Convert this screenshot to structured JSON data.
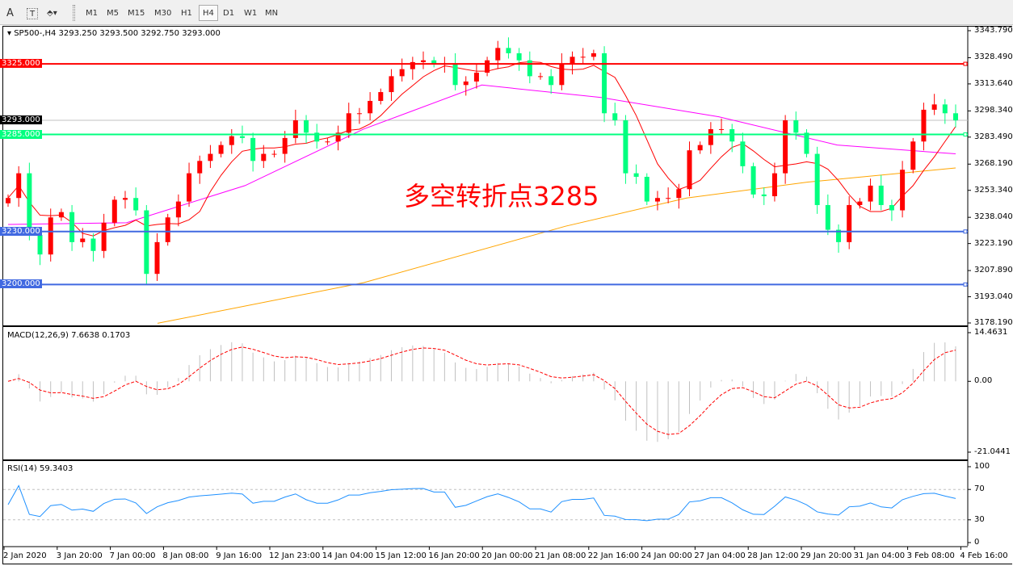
{
  "toolbar": {
    "tools": [
      {
        "name": "text",
        "glyph": "A"
      },
      {
        "name": "text-label",
        "glyph": "T"
      },
      {
        "name": "arrows",
        "glyph": "⬘▾"
      }
    ],
    "timeframes": [
      "M1",
      "M5",
      "M15",
      "M30",
      "H1",
      "H4",
      "D1",
      "W1",
      "MN"
    ],
    "active": "H4"
  },
  "main": {
    "title": "SP500-,H4  3293.250 3293.500 3292.750 3293.000",
    "price_axis": [
      "3343.790",
      "3328.490",
      "3313.640",
      "3298.340",
      "3283.490",
      "3268.190",
      "3253.340",
      "3238.040",
      "3223.190",
      "3207.890",
      "3193.040",
      "3178.190"
    ],
    "hlines": [
      {
        "price": 3325,
        "label": "3325.000",
        "color": "#ff0000"
      },
      {
        "price": 3285,
        "label": "3285.000",
        "color": "#00ff7f"
      },
      {
        "price": 3230,
        "label": "3230.000",
        "color": "#4169e1"
      },
      {
        "price": 3200,
        "label": "3200.000",
        "color": "#4169e1"
      }
    ],
    "current": {
      "price": 3293,
      "label": "3293.000"
    },
    "annotation": "多空转折点3285",
    "colors": {
      "up": "#ff0000",
      "down": "#00ff7f",
      "ma_fast": "#ff0000",
      "ma_mid": "#ff00ff",
      "ma_slow": "#ffa500"
    },
    "closes": [
      3249,
      3263,
      3228,
      3217,
      3238,
      3241,
      3224,
      3226,
      3219,
      3235,
      3248,
      3249,
      3242,
      3206,
      3224,
      3238,
      3247,
      3263,
      3270,
      3274,
      3279,
      3284,
      3283,
      3270,
      3274,
      3274,
      3283,
      3293,
      3286,
      3281,
      3281,
      3286,
      3297,
      3297,
      3304,
      3309,
      3318,
      3322,
      3326,
      3327,
      3325,
      3325,
      3313,
      3315,
      3320,
      3327,
      3334,
      3331,
      3327,
      3318,
      3318,
      3313,
      3325,
      3329,
      3329,
      3331,
      3297,
      3293,
      3263,
      3261,
      3247,
      3249,
      3249,
      3254,
      3276,
      3279,
      3288,
      3288,
      3281,
      3267,
      3251,
      3250,
      3263,
      3293,
      3286,
      3274,
      3245,
      3231,
      3224,
      3245,
      3247,
      3256,
      3245,
      3242,
      3265,
      3281,
      3299,
      3302,
      3297,
      3293
    ],
    "ma_mid": [
      3234,
      3235,
      3256,
      3288,
      3313,
      3306,
      3295,
      3279,
      3274
    ],
    "ma_slow": [
      3178,
      3201,
      3233,
      3249,
      3258,
      3266
    ]
  },
  "macd": {
    "title": "MACD(12,26,9) 7.6638 0.1703",
    "axis": [
      "14.4631",
      "0.00",
      "-21.0441"
    ],
    "max": 14.4631,
    "min": -21.0441
  },
  "rsi": {
    "title": "RSI(14) 59.3403",
    "axis": [
      "100",
      "70",
      "30",
      "0"
    ],
    "levels": [
      70,
      30
    ]
  },
  "time_axis": [
    "2 Jan 2020",
    "3 Jan 20:00",
    "7 Jan 00:00",
    "8 Jan 08:00",
    "9 Jan 16:00",
    "12 Jan 23:00",
    "14 Jan 04:00",
    "15 Jan 12:00",
    "16 Jan 20:00",
    "20 Jan 00:00",
    "21 Jan 08:00",
    "22 Jan 16:00",
    "24 Jan 00:00",
    "27 Jan 04:00",
    "28 Jan 12:00",
    "29 Jan 20:00",
    "31 Jan 04:00",
    "3 Feb 08:00",
    "4 Feb 16:00"
  ]
}
